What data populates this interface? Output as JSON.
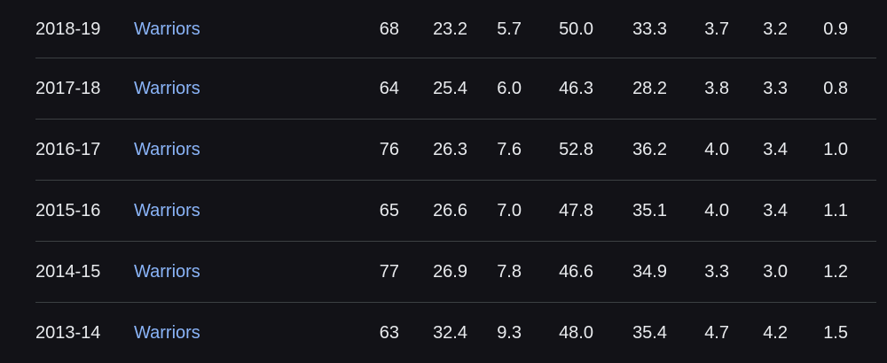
{
  "stats_table": {
    "rows": [
      {
        "season": "2018-19",
        "team": "Warriors",
        "gp": "68",
        "pts": "23.2",
        "reb": "5.7",
        "fg": "50.0",
        "three_p": "33.3",
        "ast": "3.7",
        "stl": "3.2",
        "blk": "0.9"
      },
      {
        "season": "2017-18",
        "team": "Warriors",
        "gp": "64",
        "pts": "25.4",
        "reb": "6.0",
        "fg": "46.3",
        "three_p": "28.2",
        "ast": "3.8",
        "stl": "3.3",
        "blk": "0.8"
      },
      {
        "season": "2016-17",
        "team": "Warriors",
        "gp": "76",
        "pts": "26.3",
        "reb": "7.6",
        "fg": "52.8",
        "three_p": "36.2",
        "ast": "4.0",
        "stl": "3.4",
        "blk": "1.0"
      },
      {
        "season": "2015-16",
        "team": "Warriors",
        "gp": "65",
        "pts": "26.6",
        "reb": "7.0",
        "fg": "47.8",
        "three_p": "35.1",
        "ast": "4.0",
        "stl": "3.4",
        "blk": "1.1"
      },
      {
        "season": "2014-15",
        "team": "Warriors",
        "gp": "77",
        "pts": "26.9",
        "reb": "7.8",
        "fg": "46.6",
        "three_p": "34.9",
        "ast": "3.3",
        "stl": "3.0",
        "blk": "1.2"
      },
      {
        "season": "2013-14",
        "team": "Warriors",
        "gp": "63",
        "pts": "32.4",
        "reb": "9.3",
        "fg": "48.0",
        "three_p": "35.4",
        "ast": "4.7",
        "stl": "4.2",
        "blk": "1.5"
      }
    ]
  },
  "colors": {
    "background": "#121217",
    "text": "#e8eaed",
    "link": "#8ab4f8",
    "divider": "#3c4043"
  }
}
